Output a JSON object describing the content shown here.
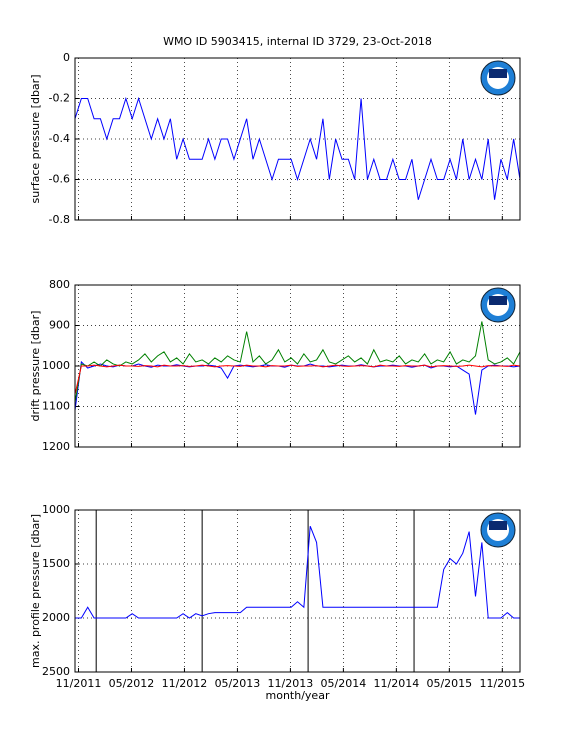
{
  "chart_data": [
    {
      "type": "line",
      "title": "WMO ID 5903415, internal ID 3729, 23-Oct-2018",
      "y_label": "surface pressure [dbar]",
      "color": "#0000ff",
      "grid": true,
      "x": [
        2011.8,
        2011.86,
        2011.92,
        2011.98,
        2012.04,
        2012.1,
        2012.16,
        2012.22,
        2012.28,
        2012.34,
        2012.4,
        2012.46,
        2012.52,
        2012.58,
        2012.64,
        2012.7,
        2012.76,
        2012.82,
        2012.88,
        2012.94,
        2013,
        2013.06,
        2013.12,
        2013.18,
        2013.24,
        2013.3,
        2013.36,
        2013.42,
        2013.48,
        2013.54,
        2013.6,
        2013.66,
        2013.72,
        2013.78,
        2013.84,
        2013.9,
        2013.96,
        2014.02,
        2014.08,
        2014.14,
        2014.2,
        2014.26,
        2014.32,
        2014.38,
        2014.44,
        2014.5,
        2014.56,
        2014.62,
        2014.68,
        2014.74,
        2014.8,
        2014.86,
        2014.92,
        2014.98,
        2015.04,
        2015.1,
        2015.16,
        2015.22,
        2015.28,
        2015.34,
        2015.4,
        2015.46,
        2015.52,
        2015.58,
        2015.64,
        2015.7,
        2015.76,
        2015.82,
        2015.88,
        2015.94,
        2016
      ],
      "values": [
        -0.3,
        -0.2,
        -0.2,
        -0.3,
        -0.3,
        -0.4,
        -0.3,
        -0.3,
        -0.2,
        -0.3,
        -0.2,
        -0.3,
        -0.4,
        -0.3,
        -0.4,
        -0.3,
        -0.5,
        -0.4,
        -0.5,
        -0.5,
        -0.5,
        -0.4,
        -0.5,
        -0.4,
        -0.4,
        -0.5,
        -0.4,
        -0.3,
        -0.5,
        -0.4,
        -0.5,
        -0.6,
        -0.5,
        -0.5,
        -0.5,
        -0.6,
        -0.5,
        -0.4,
        -0.5,
        -0.3,
        -0.6,
        -0.4,
        -0.5,
        -0.5,
        -0.6,
        -0.2,
        -0.6,
        -0.5,
        -0.6,
        -0.6,
        -0.5,
        -0.6,
        -0.6,
        -0.5,
        -0.7,
        -0.6,
        -0.5,
        -0.6,
        -0.6,
        -0.5,
        -0.6,
        -0.4,
        -0.6,
        -0.5,
        -0.6,
        -0.4,
        -0.7,
        -0.5,
        -0.6,
        -0.4,
        -0.6
      ],
      "xlim": [
        2011.8,
        2016.0
      ],
      "xticks": [
        2011.833,
        2012.333,
        2012.833,
        2013.333,
        2013.833,
        2014.333,
        2014.833,
        2015.333,
        2015.833
      ],
      "ylim": [
        -0.8,
        0
      ],
      "yticks": [
        0,
        -0.2,
        -0.4,
        -0.6,
        -0.8
      ]
    },
    {
      "type": "line",
      "y_label": "drift pressure [dbar]",
      "grid": true,
      "y_reversed": true,
      "x": [
        2011.8,
        2011.86,
        2011.92,
        2011.98,
        2012.04,
        2012.1,
        2012.16,
        2012.22,
        2012.28,
        2012.34,
        2012.4,
        2012.46,
        2012.52,
        2012.58,
        2012.64,
        2012.7,
        2012.76,
        2012.82,
        2012.88,
        2012.94,
        2013,
        2013.06,
        2013.12,
        2013.18,
        2013.24,
        2013.3,
        2013.36,
        2013.42,
        2013.48,
        2013.54,
        2013.6,
        2013.66,
        2013.72,
        2013.78,
        2013.84,
        2013.9,
        2013.96,
        2014.02,
        2014.08,
        2014.14,
        2014.2,
        2014.26,
        2014.32,
        2014.38,
        2014.44,
        2014.5,
        2014.56,
        2014.62,
        2014.68,
        2014.74,
        2014.8,
        2014.86,
        2014.92,
        2014.98,
        2015.04,
        2015.1,
        2015.16,
        2015.22,
        2015.28,
        2015.34,
        2015.4,
        2015.46,
        2015.52,
        2015.58,
        2015.64,
        2015.7,
        2015.76,
        2015.82,
        2015.88,
        2015.94,
        2016
      ],
      "series": [
        {
          "color": "#0000ff",
          "values": [
            1110,
            990,
            1005,
            1000,
            995,
            1000,
            1002,
            998,
            1000,
            1000,
            995,
            1000,
            1003,
            998,
            1000,
            1000,
            997,
            1000,
            1002,
            1000,
            1000,
            998,
            1000,
            1005,
            1030,
            1000,
            998,
            1000,
            1002,
            1000,
            997,
            1000,
            1000,
            1003,
            998,
            1000,
            1000,
            995,
            1000,
            1000,
            1002,
            1000,
            998,
            1000,
            1000,
            997,
            1000,
            1002,
            1000,
            1000,
            998,
            1000,
            1000,
            1003,
            1000,
            998,
            1005,
            1000,
            1000,
            1002,
            1000,
            1010,
            1020,
            1120,
            1010,
            1000,
            998,
            1000,
            1000,
            1002,
            1000
          ]
        },
        {
          "color": "#008000",
          "values": [
            1090,
            995,
            1000,
            990,
            1000,
            985,
            995,
            1000,
            990,
            995,
            985,
            970,
            990,
            975,
            965,
            990,
            980,
            995,
            970,
            990,
            985,
            995,
            980,
            990,
            975,
            985,
            990,
            915,
            990,
            975,
            995,
            985,
            960,
            990,
            980,
            995,
            970,
            990,
            985,
            960,
            990,
            995,
            985,
            975,
            990,
            980,
            995,
            960,
            990,
            985,
            990,
            975,
            995,
            985,
            990,
            970,
            995,
            985,
            990,
            965,
            995,
            985,
            990,
            975,
            890,
            985,
            995,
            990,
            980,
            995,
            965
          ]
        },
        {
          "color": "#ff0000",
          "values": [
            1070,
            1000,
            1000,
            998,
            1000,
            1002,
            1000,
            998,
            1000,
            1000,
            1001,
            999,
            1000,
            1002,
            998,
            1000,
            1000,
            999,
            1001,
            1000,
            998,
            1000,
            1002,
            1000,
            999,
            1000,
            1001,
            998,
            1000,
            1000,
            1002,
            999,
            1000,
            1000,
            998,
            1001,
            1000,
            1000,
            999,
            1002,
            1000,
            998,
            1000,
            1001,
            1000,
            999,
            1000,
            1002,
            998,
            1000,
            1000,
            1001,
            999,
            1000,
            1000,
            998,
            1002,
            1000,
            999,
            1000,
            1001,
            1000,
            998,
            1000,
            1002,
            999,
            1000,
            1000,
            1001,
            998,
            1000
          ]
        }
      ],
      "xlim": [
        2011.8,
        2016.0
      ],
      "xticks": [
        2011.833,
        2012.333,
        2012.833,
        2013.333,
        2013.833,
        2014.333,
        2014.833,
        2015.333,
        2015.833
      ],
      "ylim": [
        800,
        1200
      ],
      "yticks": [
        800,
        900,
        1000,
        1100,
        1200
      ]
    },
    {
      "type": "line",
      "y_label": "max. profile pressure [dbar]",
      "x_label": "month/year",
      "color": "#0000ff",
      "grid": true,
      "y_reversed": true,
      "x": [
        2011.8,
        2011.86,
        2011.92,
        2011.98,
        2012.04,
        2012.1,
        2012.16,
        2012.22,
        2012.28,
        2012.34,
        2012.4,
        2012.46,
        2012.52,
        2012.58,
        2012.64,
        2012.7,
        2012.76,
        2012.82,
        2012.88,
        2012.94,
        2013,
        2013.06,
        2013.12,
        2013.18,
        2013.24,
        2013.3,
        2013.36,
        2013.42,
        2013.48,
        2013.54,
        2013.6,
        2013.66,
        2013.72,
        2013.78,
        2013.84,
        2013.9,
        2013.96,
        2014.02,
        2014.08,
        2014.14,
        2014.2,
        2014.26,
        2014.32,
        2014.38,
        2014.44,
        2014.5,
        2014.56,
        2014.62,
        2014.68,
        2014.74,
        2014.8,
        2014.86,
        2014.92,
        2014.98,
        2015.04,
        2015.1,
        2015.16,
        2015.22,
        2015.28,
        2015.34,
        2015.4,
        2015.46,
        2015.52,
        2015.58,
        2015.64,
        2015.7,
        2015.76,
        2015.82,
        2015.88,
        2015.94,
        2016
      ],
      "values": [
        2000,
        2000,
        1900,
        2000,
        2000,
        2000,
        2000,
        2000,
        2000,
        1960,
        2000,
        2000,
        2000,
        2000,
        2000,
        2000,
        2000,
        1960,
        2000,
        1960,
        1980,
        1960,
        1950,
        1950,
        1950,
        1950,
        1950,
        1900,
        1900,
        1900,
        1900,
        1900,
        1900,
        1900,
        1900,
        1850,
        1900,
        1150,
        1300,
        1900,
        1900,
        1900,
        1900,
        1900,
        1900,
        1900,
        1900,
        1900,
        1900,
        1900,
        1900,
        1900,
        1900,
        1900,
        1900,
        1900,
        1900,
        1900,
        1550,
        1450,
        1500,
        1400,
        1200,
        1800,
        1300,
        2000,
        2000,
        2000,
        1950,
        2000,
        2000
      ],
      "vlines": [
        2012.0,
        2013.0,
        2014.0,
        2015.0,
        2016.0
      ],
      "xlim": [
        2011.8,
        2016.0
      ],
      "xticks": [
        {
          "value": 2011.833,
          "label": "11/2011"
        },
        {
          "value": 2012.333,
          "label": "05/2012"
        },
        {
          "value": 2012.833,
          "label": "11/2012"
        },
        {
          "value": 2013.333,
          "label": "05/2013"
        },
        {
          "value": 2013.833,
          "label": "11/2013"
        },
        {
          "value": 2014.333,
          "label": "05/2014"
        },
        {
          "value": 2014.833,
          "label": "11/2014"
        },
        {
          "value": 2015.333,
          "label": "05/2015"
        },
        {
          "value": 2015.833,
          "label": "11/2015"
        }
      ],
      "ylim": [
        1000,
        2500
      ],
      "yticks": [
        1000,
        1500,
        2000,
        2500
      ]
    }
  ]
}
